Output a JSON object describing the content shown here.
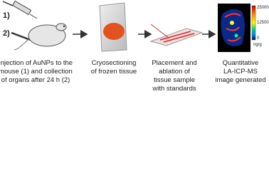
{
  "steps": [
    {
      "markers": [
        "1)",
        "2)"
      ],
      "lines": [
        "Injection of AuNPs to the",
        "mouse (1) and collection",
        "of organs after 24 h (2)"
      ]
    },
    {
      "lines": [
        "Cryosectioning",
        "of frozen tissue"
      ]
    },
    {
      "lines": [
        "Placement and",
        "ablation of",
        "tissue sample",
        "with standards"
      ]
    },
    {
      "lines": [
        "Quantitative",
        "LA-ICP-MS",
        "image generated"
      ]
    }
  ],
  "colorbar": {
    "ticks": [
      "25000",
      "12500",
      "0"
    ],
    "unit": "ng/g"
  }
}
